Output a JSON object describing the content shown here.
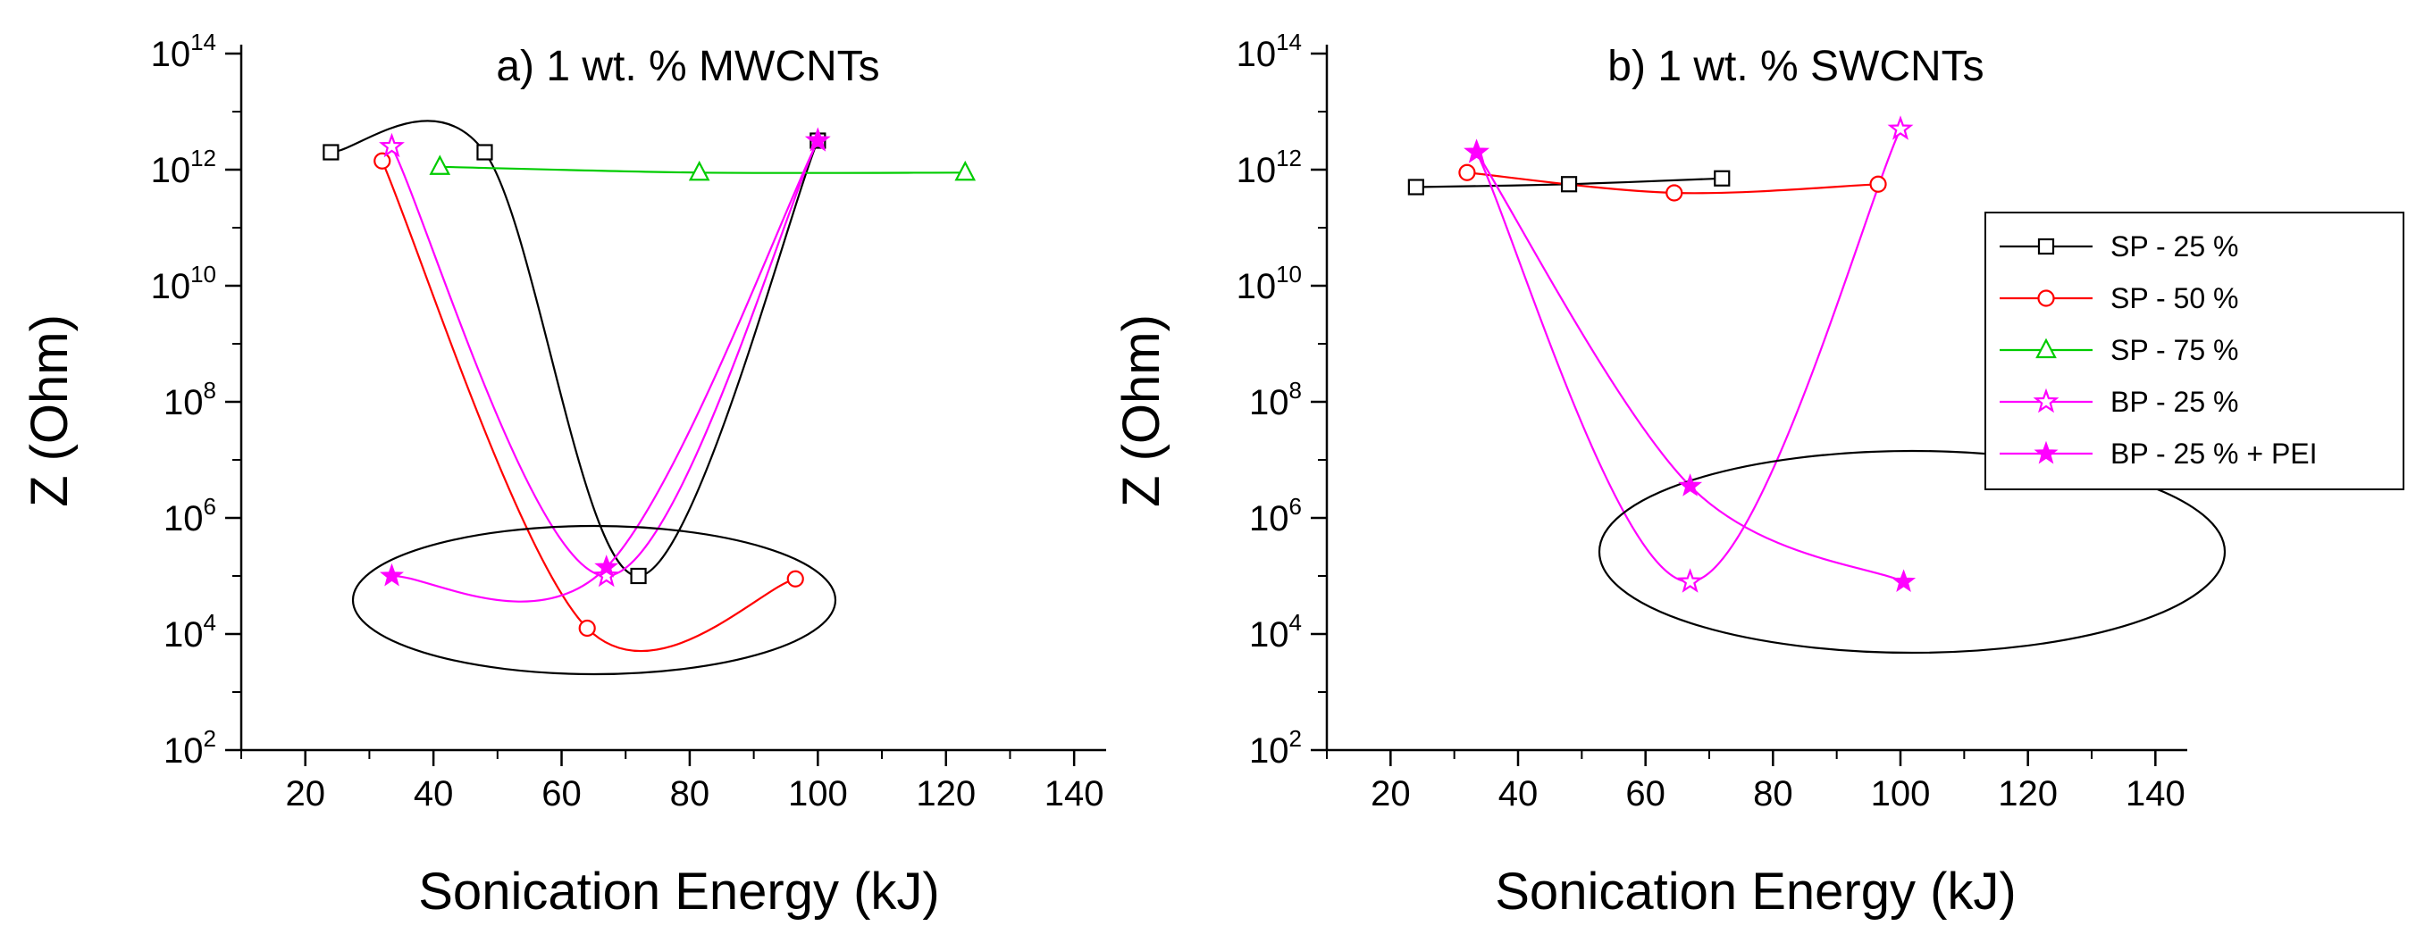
{
  "chart_data": [
    {
      "type": "line",
      "panel": "a",
      "title": "a) 1 wt. % MWCNTs",
      "xlabel": "Sonication Energy (kJ)",
      "ylabel": "Z (Ohm)",
      "xlim": [
        10,
        145
      ],
      "ylim_log10": [
        2,
        14
      ],
      "y_scale": "log",
      "x_ticks": [
        "20",
        "40",
        "60",
        "80",
        "100",
        "120",
        "140"
      ],
      "y_tick_base": "10",
      "y_tick_exponents": [
        "2",
        "4",
        "6",
        "8",
        "10",
        "12",
        "14"
      ],
      "series": [
        {
          "name": "SP - 25 %",
          "color": "#000000",
          "marker": "square",
          "x": [
            24,
            48,
            72,
            100
          ],
          "log10_y": [
            12.3,
            12.3,
            5.0,
            12.5
          ]
        },
        {
          "name": "SP - 50 %",
          "color": "#ff0000",
          "marker": "circle",
          "x": [
            32,
            64,
            96.5
          ],
          "log10_y": [
            12.15,
            4.1,
            4.95
          ]
        },
        {
          "name": "SP - 75 %",
          "color": "#00cc00",
          "marker": "triangle",
          "x": [
            41,
            81.5,
            123
          ],
          "log10_y": [
            12.05,
            11.95,
            11.95
          ]
        },
        {
          "name": "BP - 25 %",
          "color": "#ff00ff",
          "marker": "star-open",
          "x": [
            33.5,
            67,
            100
          ],
          "log10_y": [
            12.4,
            5.0,
            12.5
          ]
        },
        {
          "name": "BP - 25 % + PEI",
          "color": "#ff00ff",
          "marker": "star-filled",
          "x": [
            33.5,
            67,
            100
          ],
          "log10_y": [
            5.0,
            5.15,
            12.5
          ]
        }
      ],
      "annotation": "ellipse around low-impedance points"
    },
    {
      "type": "line",
      "panel": "b",
      "title": "b) 1 wt. % SWCNTs",
      "xlabel": "Sonication Energy (kJ)",
      "ylabel": "Z (Ohm)",
      "xlim": [
        10,
        145
      ],
      "ylim_log10": [
        2,
        14
      ],
      "y_scale": "log",
      "x_ticks": [
        "20",
        "40",
        "60",
        "80",
        "100",
        "120",
        "140"
      ],
      "y_tick_base": "10",
      "y_tick_exponents": [
        "2",
        "4",
        "6",
        "8",
        "10",
        "12",
        "14"
      ],
      "series": [
        {
          "name": "SP - 25 %",
          "color": "#000000",
          "marker": "square",
          "x": [
            24,
            48,
            72
          ],
          "log10_y": [
            11.7,
            11.75,
            11.85
          ]
        },
        {
          "name": "SP - 50 %",
          "color": "#ff0000",
          "marker": "circle",
          "x": [
            32,
            64.5,
            96.5
          ],
          "log10_y": [
            11.95,
            11.6,
            11.75
          ]
        },
        {
          "name": "BP - 25 %",
          "color": "#ff00ff",
          "marker": "star-open",
          "x": [
            33.5,
            67,
            100
          ],
          "log10_y": [
            12.3,
            4.9,
            12.7
          ]
        },
        {
          "name": "BP - 25 % + PEI",
          "color": "#ff00ff",
          "marker": "star-filled",
          "x": [
            33.5,
            67,
            100.5
          ],
          "log10_y": [
            12.3,
            6.55,
            4.9
          ]
        }
      ],
      "annotation": "ellipse around low-impedance points"
    }
  ],
  "legend": {
    "items": [
      {
        "label": "SP - 25 %",
        "color": "#000000",
        "marker": "square"
      },
      {
        "label": "SP - 50 %",
        "color": "#ff0000",
        "marker": "circle"
      },
      {
        "label": "SP - 75 %",
        "color": "#00cc00",
        "marker": "triangle"
      },
      {
        "label": "BP - 25 %",
        "color": "#ff00ff",
        "marker": "star-open"
      },
      {
        "label": "BP - 25 % + PEI",
        "color": "#ff00ff",
        "marker": "star-filled"
      }
    ]
  }
}
